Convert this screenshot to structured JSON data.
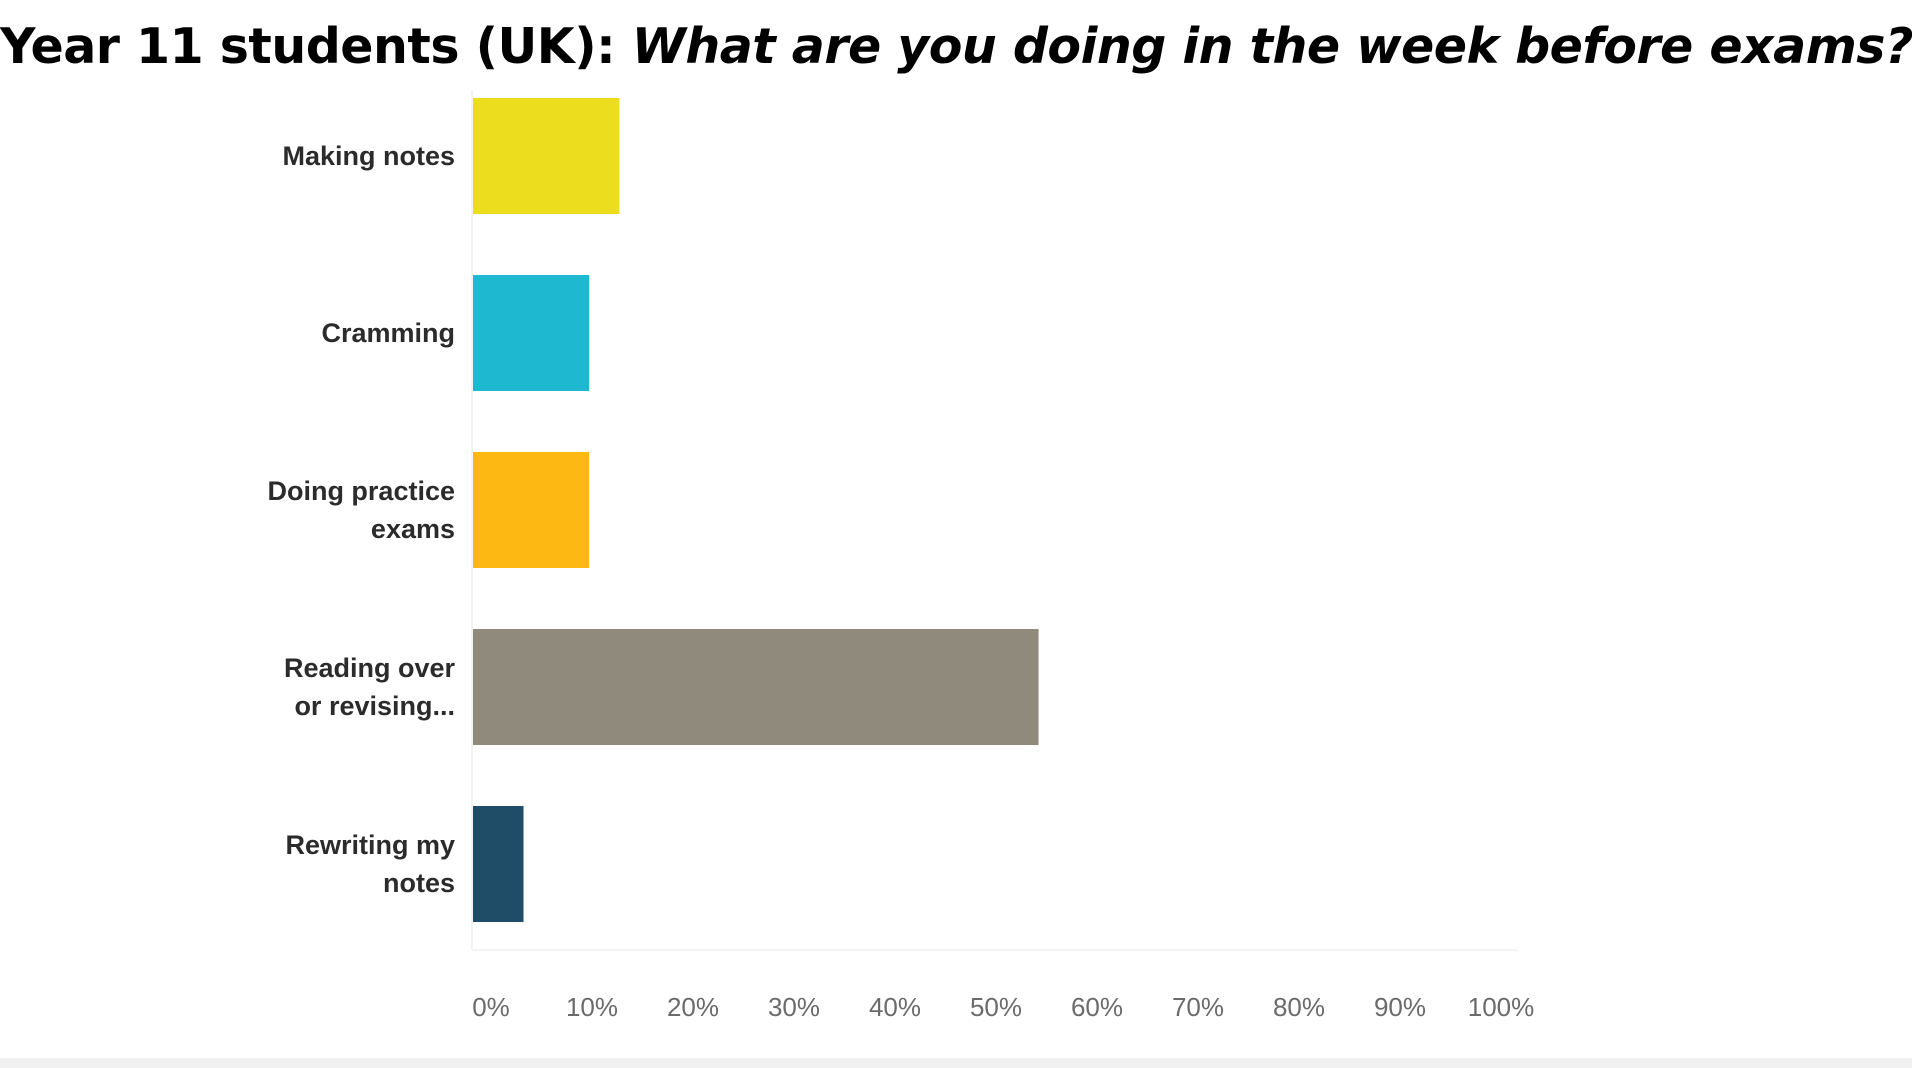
{
  "title": {
    "plain": "Year 11 students (UK): ",
    "italic": "What are you doing in the week before exams?"
  },
  "chart_data": {
    "type": "bar",
    "orientation": "horizontal",
    "categories": [
      [
        "Making notes"
      ],
      [
        "Cramming"
      ],
      [
        "Doing practice",
        "exams"
      ],
      [
        "Reading over",
        "or revising..."
      ],
      [
        "Rewriting my",
        "notes"
      ]
    ],
    "values": [
      14.5,
      11.5,
      11.5,
      56,
      5
    ],
    "colors": [
      "#ECDE1E",
      "#1FB8D1",
      "#FDB813",
      "#8F8A7B",
      "#1F4D68"
    ],
    "xlim": [
      0,
      100
    ],
    "x_ticks": [
      "0%",
      "10%",
      "20%",
      "30%",
      "40%",
      "50%",
      "60%",
      "70%",
      "80%",
      "90%",
      "100%"
    ],
    "grid": false,
    "legend": "none"
  }
}
